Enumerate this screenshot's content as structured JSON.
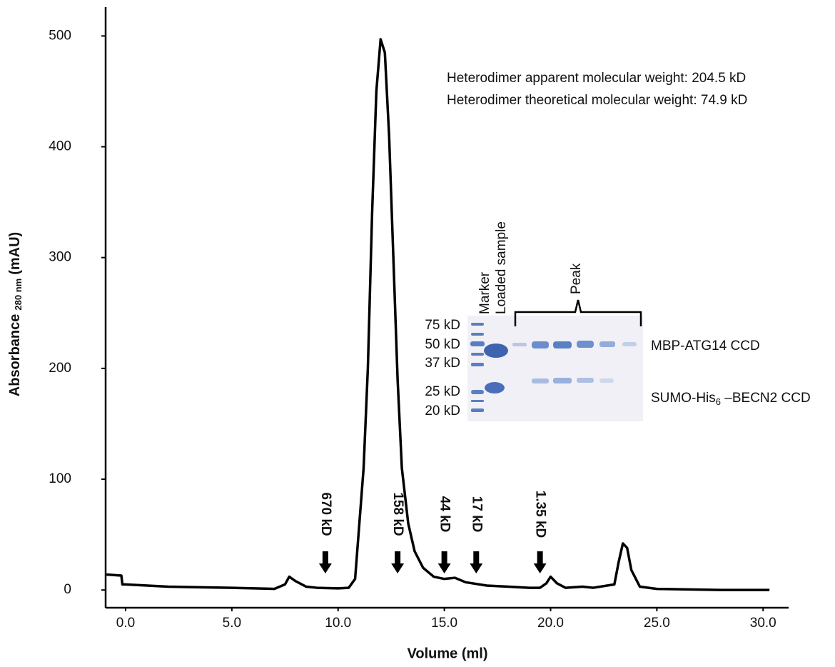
{
  "chart_data": {
    "type": "line",
    "x_label": "Volume (ml)",
    "y_label": {
      "text": "Absorbance",
      "subscript": "280 nm",
      "suffix": "(mAU)"
    },
    "xlim": [
      -0.94,
      31.2
    ],
    "ylim": [
      -16,
      526
    ],
    "xticks": [
      {
        "value": 0,
        "label": "0.0"
      },
      {
        "value": 5,
        "label": "5.0"
      },
      {
        "value": 10,
        "label": "10.0"
      },
      {
        "value": 15,
        "label": "15.0"
      },
      {
        "value": 20,
        "label": "20.0"
      },
      {
        "value": 25,
        "label": "25.0"
      },
      {
        "value": 30,
        "label": "30.0"
      }
    ],
    "yticks": [
      0,
      100,
      200,
      300,
      400,
      500
    ],
    "series": [
      {
        "color": "#000000",
        "x": [
          -0.9,
          -0.2,
          -0.15,
          0,
          2,
          5,
          7,
          7.5,
          7.7,
          8,
          8.5,
          9,
          10,
          10.5,
          10.8,
          11,
          11.2,
          11.4,
          11.6,
          11.8,
          12.0,
          12.2,
          12.4,
          12.6,
          12.8,
          13.0,
          13.3,
          13.6,
          14.0,
          14.5,
          15.0,
          15.5,
          16,
          17,
          18,
          19,
          19.5,
          19.8,
          20.0,
          20.3,
          20.7,
          21.5,
          22,
          23,
          23.2,
          23.4,
          23.6,
          23.8,
          24.2,
          25,
          28,
          30.3
        ],
        "values": [
          14,
          13,
          5,
          5,
          3,
          2,
          1,
          5,
          12,
          8,
          3,
          2,
          1.5,
          2,
          10,
          60,
          110,
          200,
          340,
          450,
          497,
          485,
          410,
          300,
          190,
          110,
          60,
          35,
          20,
          12,
          10,
          11,
          7,
          4,
          3,
          2,
          2,
          6,
          12,
          6,
          2,
          3,
          2,
          5,
          25,
          42,
          38,
          18,
          3,
          1,
          0,
          0
        ]
      }
    ],
    "markers": [
      {
        "x": 9.4,
        "label": "670 kD"
      },
      {
        "x": 12.8,
        "label": "158 kD"
      },
      {
        "x": 15.0,
        "label": "44 kD"
      },
      {
        "x": 16.5,
        "label": "17 kD"
      },
      {
        "x": 19.5,
        "label": "1.35 kD"
      }
    ],
    "annotations": [
      "Heterodimer apparent molecular weight: 204.5 kD",
      "Heterodimer theoretical molecular weight: 74.9 kD"
    ],
    "gel_inset": {
      "lane_labels": [
        "Marker",
        "Loaded sample"
      ],
      "group_label": "Peak",
      "ladder_labels": [
        "75 kD",
        "50 kD",
        "37 kD",
        "25 kD",
        "20 kD"
      ],
      "band_labels": [
        {
          "text": "MBP-ATG14 CCD"
        },
        {
          "text": "SUMO-His",
          "subscript": "6",
          "suffix": " –BECN2 CCD"
        }
      ]
    }
  }
}
